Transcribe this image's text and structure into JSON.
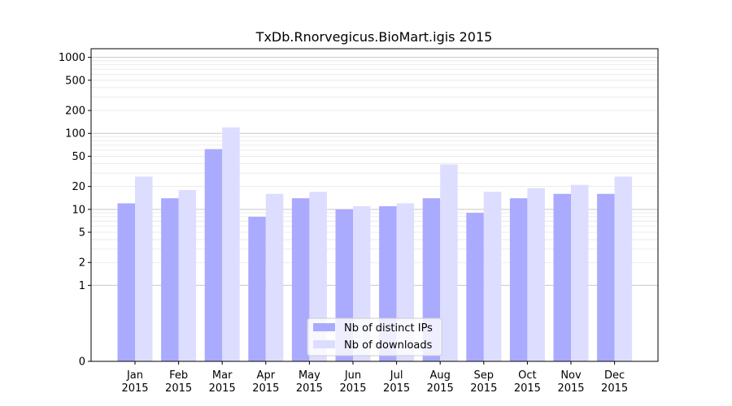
{
  "chart_data": {
    "type": "bar",
    "title": "TxDb.Rnorvegicus.BioMart.igis 2015",
    "categories": [
      "Jan 2015",
      "Feb 2015",
      "Mar 2015",
      "Apr 2015",
      "May 2015",
      "Jun 2015",
      "Jul 2015",
      "Aug 2015",
      "Sep 2015",
      "Oct 2015",
      "Nov 2015",
      "Dec 2015"
    ],
    "category_lines": [
      [
        "Jan",
        "2015"
      ],
      [
        "Feb",
        "2015"
      ],
      [
        "Mar",
        "2015"
      ],
      [
        "Apr",
        "2015"
      ],
      [
        "May",
        "2015"
      ],
      [
        "Jun",
        "2015"
      ],
      [
        "Jul",
        "2015"
      ],
      [
        "Aug",
        "2015"
      ],
      [
        "Sep",
        "2015"
      ],
      [
        "Oct",
        "2015"
      ],
      [
        "Nov",
        "2015"
      ],
      [
        "Dec",
        "2015"
      ]
    ],
    "series": [
      {
        "name": "Nb of distinct IPs",
        "color": "#aaaaff",
        "values": [
          12,
          14,
          62,
          8,
          14,
          10,
          11,
          14,
          9,
          14,
          16,
          16
        ]
      },
      {
        "name": "Nb of downloads",
        "color": "#ddddff",
        "values": [
          27,
          18,
          120,
          16,
          17,
          11,
          12,
          39,
          17,
          19,
          21,
          27
        ]
      }
    ],
    "yscale": "symlog",
    "ylim": [
      0,
      1300
    ],
    "yticks": [
      {
        "value": 0,
        "label": "0"
      },
      {
        "value": 1,
        "label": "1"
      },
      {
        "value": 2,
        "label": "2"
      },
      {
        "value": 5,
        "label": "5"
      },
      {
        "value": 10,
        "label": "10"
      },
      {
        "value": 20,
        "label": "20"
      },
      {
        "value": 50,
        "label": "50"
      },
      {
        "value": 100,
        "label": "100"
      },
      {
        "value": 200,
        "label": "200"
      },
      {
        "value": 500,
        "label": "500"
      },
      {
        "value": 1000,
        "label": "1000"
      }
    ],
    "grid": true,
    "legend": "bottom-center",
    "xlabel": "",
    "ylabel": ""
  }
}
